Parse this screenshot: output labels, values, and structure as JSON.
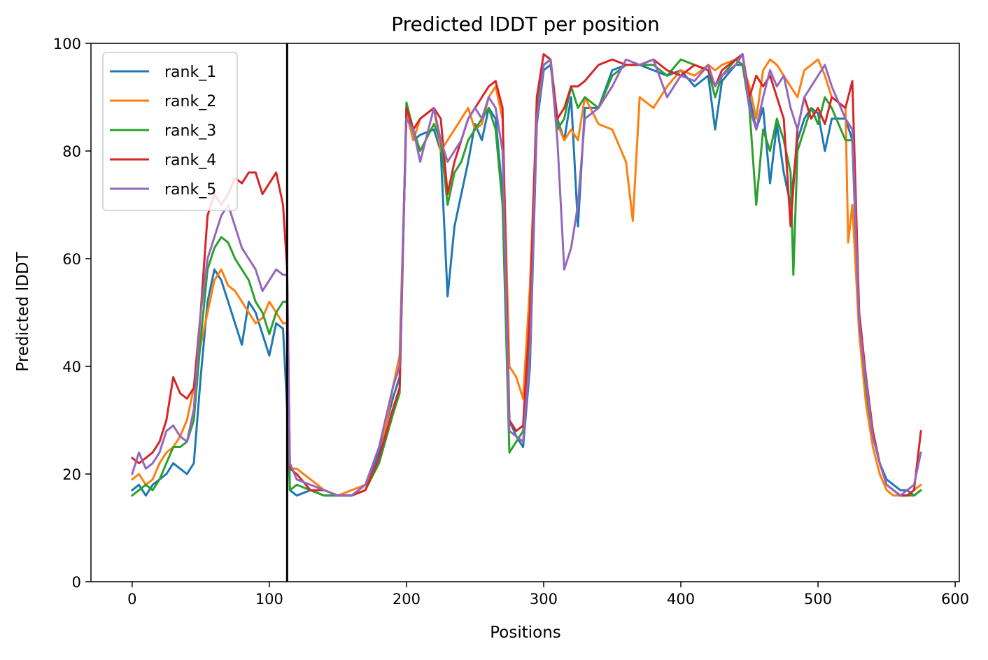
{
  "chart_data": {
    "type": "line",
    "title": "Predicted lDDT per position",
    "xlabel": "Positions",
    "ylabel": "Predicted lDDT",
    "xlim": [
      -30,
      603
    ],
    "ylim": [
      0,
      100
    ],
    "xticks": [
      0,
      100,
      200,
      300,
      400,
      500,
      600
    ],
    "yticks": [
      0,
      20,
      40,
      60,
      80,
      100
    ],
    "grid": false,
    "legend_position": "top-left",
    "chain_boundary_x": 113,
    "series": [
      {
        "name": "rank_1",
        "color": "#1f77b4",
        "x": [
          0,
          5,
          10,
          15,
          20,
          25,
          30,
          35,
          40,
          45,
          50,
          55,
          60,
          65,
          70,
          75,
          80,
          85,
          90,
          95,
          100,
          105,
          110,
          113,
          115,
          120,
          130,
          140,
          150,
          160,
          170,
          180,
          190,
          195,
          200,
          205,
          210,
          220,
          225,
          230,
          235,
          240,
          245,
          250,
          255,
          260,
          265,
          270,
          275,
          280,
          285,
          290,
          295,
          300,
          305,
          310,
          315,
          320,
          325,
          330,
          340,
          350,
          360,
          370,
          380,
          390,
          400,
          410,
          420,
          425,
          430,
          440,
          445,
          450,
          455,
          460,
          465,
          470,
          475,
          480,
          485,
          490,
          495,
          500,
          505,
          510,
          520,
          525,
          530,
          535,
          540,
          545,
          550,
          555,
          560,
          565,
          570,
          575
        ],
        "y": [
          17,
          18,
          16,
          18,
          19,
          20,
          22,
          21,
          20,
          22,
          38,
          52,
          58,
          56,
          52,
          48,
          44,
          52,
          50,
          46,
          42,
          48,
          47,
          32,
          17,
          16,
          17,
          16,
          16,
          16,
          18,
          24,
          34,
          38,
          88,
          82,
          83,
          84,
          80,
          53,
          66,
          72,
          78,
          85,
          82,
          88,
          86,
          72,
          30,
          27,
          25,
          40,
          85,
          95,
          96,
          86,
          82,
          90,
          66,
          88,
          88,
          95,
          96,
          96,
          95,
          94,
          95,
          92,
          94,
          84,
          93,
          96,
          96,
          90,
          84,
          88,
          74,
          85,
          76,
          70,
          82,
          86,
          88,
          87,
          80,
          86,
          86,
          82,
          47,
          35,
          27,
          22,
          19,
          18,
          17,
          17,
          16,
          17
        ]
      },
      {
        "name": "rank_2",
        "color": "#ff7f0e",
        "x": [
          0,
          5,
          10,
          15,
          20,
          25,
          30,
          35,
          40,
          45,
          50,
          55,
          60,
          65,
          70,
          75,
          80,
          85,
          90,
          95,
          100,
          105,
          110,
          113,
          115,
          120,
          130,
          140,
          150,
          160,
          170,
          180,
          190,
          195,
          200,
          205,
          210,
          220,
          225,
          230,
          235,
          240,
          245,
          250,
          255,
          260,
          265,
          270,
          275,
          280,
          285,
          290,
          295,
          300,
          305,
          310,
          315,
          320,
          325,
          330,
          340,
          350,
          360,
          365,
          370,
          380,
          390,
          400,
          410,
          420,
          425,
          430,
          440,
          445,
          450,
          455,
          460,
          465,
          470,
          475,
          480,
          485,
          490,
          495,
          500,
          505,
          510,
          520,
          522,
          525,
          530,
          535,
          540,
          545,
          550,
          555,
          560,
          565,
          570,
          575
        ],
        "y": [
          19,
          20,
          18,
          19,
          22,
          24,
          25,
          27,
          30,
          36,
          44,
          50,
          56,
          58,
          55,
          54,
          52,
          50,
          48,
          49,
          52,
          50,
          48,
          48,
          21,
          21,
          19,
          17,
          16,
          17,
          18,
          22,
          36,
          42,
          87,
          82,
          86,
          88,
          80,
          82,
          84,
          86,
          88,
          84,
          85,
          90,
          92,
          86,
          40,
          38,
          34,
          55,
          88,
          96,
          97,
          85,
          82,
          84,
          82,
          90,
          85,
          84,
          78,
          67,
          90,
          88,
          92,
          95,
          94,
          96,
          95,
          96,
          97,
          96,
          92,
          86,
          95,
          97,
          96,
          94,
          92,
          90,
          95,
          96,
          97,
          94,
          90,
          88,
          63,
          70,
          46,
          33,
          25,
          20,
          17,
          16,
          16,
          16,
          17,
          18
        ]
      },
      {
        "name": "rank_3",
        "color": "#2ca02c",
        "x": [
          0,
          5,
          10,
          15,
          20,
          25,
          30,
          35,
          40,
          45,
          50,
          55,
          60,
          65,
          70,
          75,
          80,
          85,
          90,
          95,
          100,
          105,
          110,
          113,
          115,
          120,
          130,
          140,
          150,
          160,
          170,
          180,
          190,
          195,
          200,
          205,
          210,
          220,
          225,
          230,
          235,
          240,
          245,
          250,
          255,
          260,
          265,
          270,
          275,
          280,
          285,
          290,
          295,
          300,
          305,
          310,
          315,
          320,
          325,
          330,
          340,
          350,
          360,
          370,
          380,
          390,
          400,
          410,
          420,
          425,
          430,
          440,
          445,
          450,
          455,
          460,
          465,
          470,
          475,
          480,
          482,
          485,
          490,
          495,
          500,
          505,
          510,
          520,
          525,
          530,
          535,
          540,
          545,
          550,
          555,
          560,
          565,
          570,
          575
        ],
        "y": [
          16,
          17,
          18,
          17,
          19,
          22,
          25,
          25,
          26,
          30,
          45,
          58,
          62,
          64,
          63,
          60,
          58,
          56,
          52,
          50,
          46,
          50,
          52,
          52,
          17,
          18,
          17,
          16,
          16,
          16,
          17,
          22,
          31,
          35,
          89,
          84,
          80,
          85,
          82,
          70,
          76,
          78,
          82,
          84,
          86,
          88,
          84,
          70,
          24,
          26,
          28,
          45,
          88,
          96,
          97,
          84,
          86,
          92,
          88,
          90,
          88,
          94,
          96,
          96,
          96,
          94,
          97,
          96,
          95,
          90,
          94,
          97,
          96,
          88,
          70,
          84,
          80,
          86,
          82,
          76,
          57,
          80,
          84,
          88,
          85,
          90,
          88,
          82,
          82,
          49,
          36,
          27,
          22,
          18,
          17,
          16,
          16,
          16,
          17
        ]
      },
      {
        "name": "rank_4",
        "color": "#d62728",
        "x": [
          0,
          5,
          10,
          15,
          20,
          25,
          30,
          35,
          40,
          45,
          50,
          55,
          60,
          65,
          70,
          75,
          80,
          85,
          90,
          95,
          100,
          105,
          110,
          113,
          115,
          120,
          130,
          140,
          150,
          160,
          170,
          180,
          190,
          195,
          200,
          205,
          210,
          220,
          225,
          230,
          235,
          240,
          245,
          250,
          255,
          260,
          265,
          270,
          275,
          280,
          285,
          290,
          295,
          300,
          305,
          310,
          315,
          320,
          325,
          330,
          340,
          350,
          360,
          370,
          380,
          390,
          400,
          410,
          420,
          425,
          430,
          440,
          445,
          450,
          455,
          460,
          465,
          470,
          475,
          480,
          485,
          490,
          495,
          500,
          505,
          510,
          520,
          525,
          530,
          535,
          540,
          545,
          550,
          555,
          560,
          565,
          570,
          575
        ],
        "y": [
          23,
          22,
          23,
          24,
          26,
          30,
          38,
          35,
          34,
          36,
          50,
          68,
          72,
          70,
          72,
          75,
          74,
          76,
          76,
          72,
          74,
          76,
          70,
          58,
          21,
          20,
          17,
          17,
          16,
          16,
          17,
          23,
          32,
          36,
          88,
          84,
          86,
          88,
          86,
          72,
          78,
          82,
          86,
          88,
          90,
          92,
          93,
          88,
          30,
          28,
          29,
          50,
          90,
          98,
          97,
          86,
          88,
          92,
          92,
          93,
          96,
          97,
          96,
          96,
          97,
          95,
          94,
          96,
          95,
          92,
          95,
          97,
          98,
          90,
          94,
          92,
          94,
          90,
          86,
          66,
          84,
          90,
          86,
          88,
          85,
          90,
          88,
          93,
          50,
          38,
          28,
          22,
          18,
          17,
          16,
          16,
          17,
          28
        ]
      },
      {
        "name": "rank_5",
        "color": "#9467bd",
        "x": [
          0,
          5,
          10,
          15,
          20,
          25,
          30,
          35,
          40,
          45,
          50,
          55,
          60,
          65,
          70,
          75,
          80,
          85,
          90,
          95,
          100,
          105,
          110,
          113,
          115,
          120,
          130,
          140,
          150,
          160,
          170,
          180,
          190,
          195,
          200,
          205,
          210,
          220,
          225,
          230,
          235,
          240,
          245,
          250,
          255,
          260,
          265,
          270,
          275,
          280,
          285,
          290,
          295,
          300,
          305,
          310,
          315,
          320,
          325,
          330,
          340,
          350,
          360,
          370,
          380,
          390,
          400,
          410,
          420,
          425,
          430,
          440,
          445,
          450,
          455,
          460,
          465,
          470,
          475,
          480,
          485,
          490,
          495,
          500,
          505,
          510,
          520,
          525,
          530,
          535,
          540,
          545,
          550,
          555,
          560,
          565,
          570,
          575
        ],
        "y": [
          20,
          24,
          21,
          22,
          24,
          28,
          29,
          27,
          26,
          32,
          50,
          60,
          64,
          68,
          70,
          66,
          62,
          60,
          58,
          54,
          56,
          58,
          57,
          57,
          22,
          19,
          18,
          17,
          16,
          16,
          18,
          25,
          36,
          40,
          86,
          84,
          78,
          88,
          82,
          78,
          80,
          82,
          86,
          88,
          86,
          90,
          88,
          80,
          28,
          27,
          26,
          42,
          86,
          96,
          97,
          82,
          58,
          62,
          70,
          86,
          88,
          92,
          97,
          96,
          97,
          90,
          94,
          93,
          96,
          92,
          94,
          96,
          98,
          88,
          84,
          90,
          95,
          92,
          94,
          88,
          84,
          90,
          92,
          94,
          96,
          92,
          86,
          84,
          48,
          37,
          27,
          22,
          18,
          17,
          16,
          17,
          18,
          24
        ]
      }
    ]
  }
}
